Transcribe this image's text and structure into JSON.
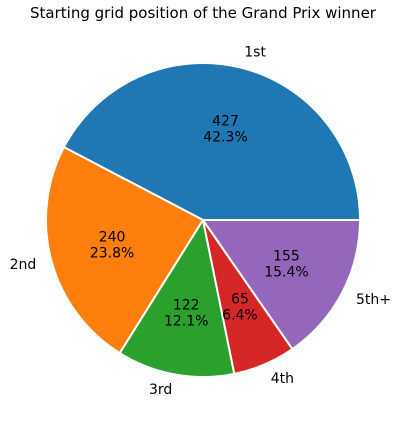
{
  "chart_data": {
    "type": "pie",
    "title": "Starting grid position of the Grand Prix winner",
    "categories": [
      "1st",
      "2nd",
      "3rd",
      "4th",
      "5th+"
    ],
    "values": [
      427,
      240,
      122,
      65,
      155
    ],
    "percent_labels": [
      "42.3%",
      "23.8%",
      "12.1%",
      "6.4%",
      "15.4%"
    ],
    "colors": [
      "#1f77b4",
      "#ff7f0e",
      "#2ca02c",
      "#d62728",
      "#9467bd"
    ],
    "start_angle_deg": 0,
    "direction": "counterclockwise",
    "legend": "none"
  }
}
